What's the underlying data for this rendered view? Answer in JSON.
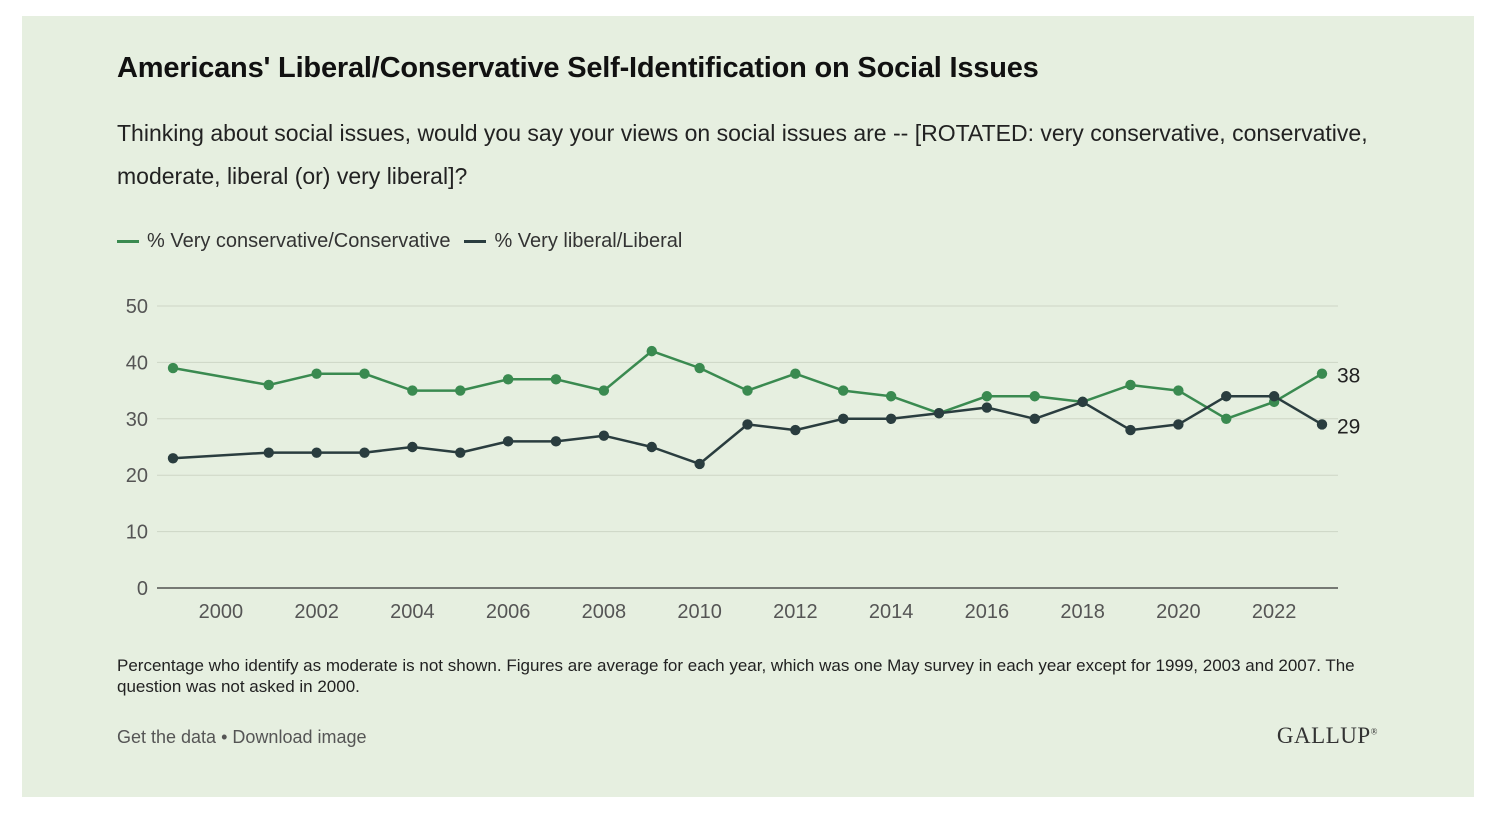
{
  "title": "Americans' Liberal/Conservative Self-Identification on Social Issues",
  "subtitle": "Thinking about social issues, would you say your views on social issues are -- [ROTATED: very conservative, conservative, moderate, liberal (or) very liberal]?",
  "footnote": "Percentage who identify as moderate is not shown. Figures are average for each year, which was one May survey in each year except for 1999, 2003 and 2007. The question was not asked in 2000.",
  "links": {
    "get_data": "Get the data",
    "separator": "•",
    "download": "Download image"
  },
  "logo": {
    "text": "GALLUP",
    "mark": "®"
  },
  "colors": {
    "background": "#e6efe0",
    "conservative": "#3a8a50",
    "liberal": "#2a3d3f",
    "grid": "#cdd6c6",
    "axis": "#555555"
  },
  "chart_data": {
    "type": "line",
    "title": "Americans' Liberal/Conservative Self-Identification on Social Issues",
    "xlabel": "",
    "ylabel": "",
    "ylim": [
      0,
      50
    ],
    "xlim": [
      1999,
      2023
    ],
    "yticks": [
      0,
      10,
      20,
      30,
      40,
      50
    ],
    "xticks": [
      2000,
      2002,
      2004,
      2006,
      2008,
      2010,
      2012,
      2014,
      2016,
      2018,
      2020,
      2022
    ],
    "grid": true,
    "legend": "top-left",
    "x": [
      1999,
      2001,
      2002,
      2003,
      2004,
      2005,
      2006,
      2007,
      2008,
      2009,
      2010,
      2011,
      2012,
      2013,
      2014,
      2015,
      2016,
      2017,
      2018,
      2019,
      2020,
      2021,
      2022,
      2023
    ],
    "series": [
      {
        "name": "% Very conservative/Conservative",
        "color": "#3a8a50",
        "values": [
          39,
          36,
          38,
          38,
          35,
          35,
          37,
          37,
          35,
          42,
          39,
          35,
          38,
          35,
          34,
          31,
          34,
          34,
          33,
          36,
          35,
          30,
          33,
          38
        ],
        "end_label": "38"
      },
      {
        "name": "% Very liberal/Liberal",
        "color": "#2a3d3f",
        "values": [
          23,
          24,
          24,
          24,
          25,
          24,
          26,
          26,
          27,
          25,
          22,
          29,
          28,
          30,
          30,
          31,
          32,
          30,
          33,
          28,
          29,
          34,
          34,
          29
        ],
        "end_label": "29"
      }
    ]
  }
}
